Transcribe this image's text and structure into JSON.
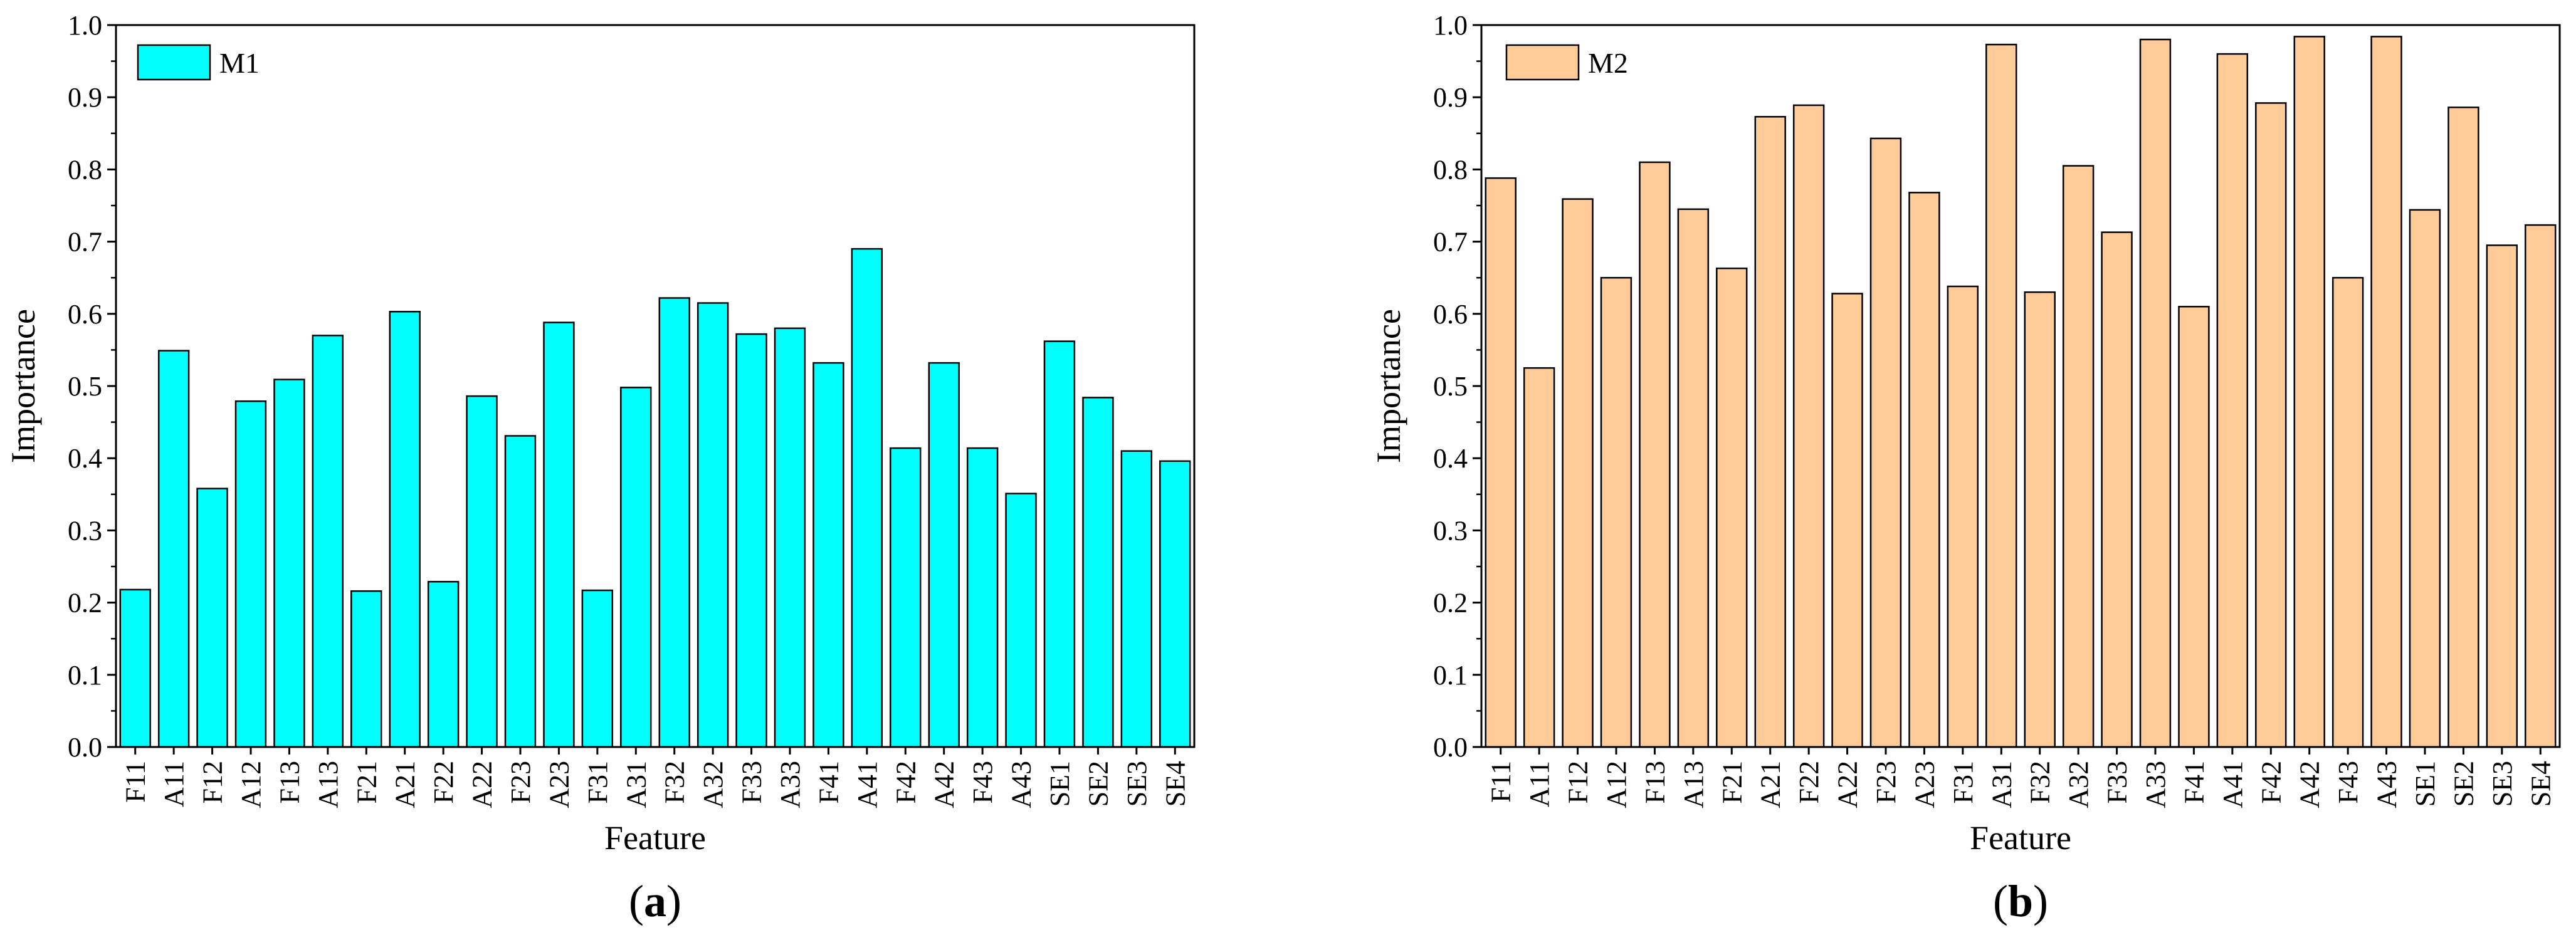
{
  "chart_data": [
    {
      "type": "bar",
      "panel_label": "a",
      "xlabel": "Feature",
      "ylabel": "Importance",
      "ylim": [
        0,
        1.0
      ],
      "yticks": [
        "0.0",
        "0.1",
        "0.2",
        "0.3",
        "0.4",
        "0.5",
        "0.6",
        "0.7",
        "0.8",
        "0.9",
        "1.0"
      ],
      "legend": "M1",
      "legend_position": "top-left",
      "color": "#00FFFF",
      "categories": [
        "F11",
        "A11",
        "F12",
        "A12",
        "F13",
        "A13",
        "F21",
        "A21",
        "F22",
        "A22",
        "F23",
        "A23",
        "F31",
        "A31",
        "F32",
        "A32",
        "F33",
        "A33",
        "F41",
        "A41",
        "F42",
        "A42",
        "F43",
        "A43",
        "SE1",
        "SE2",
        "SE3",
        "SE4"
      ],
      "values": [
        0.218,
        0.549,
        0.358,
        0.479,
        0.509,
        0.57,
        0.216,
        0.603,
        0.229,
        0.486,
        0.431,
        0.588,
        0.217,
        0.498,
        0.622,
        0.615,
        0.572,
        0.58,
        0.532,
        0.69,
        0.414,
        0.532,
        0.414,
        0.351,
        0.562,
        0.484,
        0.41,
        0.396
      ]
    },
    {
      "type": "bar",
      "panel_label": "b",
      "xlabel": "Feature",
      "ylabel": "Importance",
      "ylim": [
        0,
        1.0
      ],
      "yticks": [
        "0.0",
        "0.1",
        "0.2",
        "0.3",
        "0.4",
        "0.5",
        "0.6",
        "0.7",
        "0.8",
        "0.9",
        "1.0"
      ],
      "legend": "M2",
      "legend_position": "top-left",
      "color": "#FFCC99",
      "categories": [
        "F11",
        "A11",
        "F12",
        "A12",
        "F13",
        "A13",
        "F21",
        "A21",
        "F22",
        "A22",
        "F23",
        "A23",
        "F31",
        "A31",
        "F32",
        "A32",
        "F33",
        "A33",
        "F41",
        "A41",
        "F42",
        "A42",
        "F43",
        "A43",
        "SE1",
        "SE2",
        "SE3",
        "SE4"
      ],
      "values": [
        0.788,
        0.525,
        0.759,
        0.65,
        0.81,
        0.745,
        0.663,
        0.873,
        0.889,
        0.628,
        0.843,
        0.768,
        0.638,
        0.973,
        0.63,
        0.805,
        0.713,
        0.98,
        0.61,
        0.96,
        0.892,
        0.984,
        0.65,
        0.984,
        0.744,
        0.886,
        0.695,
        0.723
      ]
    }
  ]
}
